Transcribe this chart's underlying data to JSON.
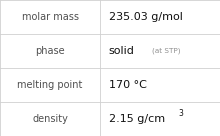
{
  "rows": [
    {
      "label": "molar mass",
      "value": "235.03 g/mol",
      "superscript": null,
      "small_suffix": null
    },
    {
      "label": "phase",
      "value": "solid",
      "superscript": null,
      "small_suffix": "(at STP)"
    },
    {
      "label": "melting point",
      "value": "170 °C",
      "superscript": null,
      "small_suffix": null
    },
    {
      "label": "density",
      "value": "2.15 g/cm",
      "superscript": "3",
      "small_suffix": null
    }
  ],
  "bg_color": "#ffffff",
  "border_color": "#d0d0d0",
  "label_color": "#505050",
  "value_color": "#111111",
  "small_color": "#909090",
  "col_split": 0.455,
  "label_fs": 7.0,
  "value_fs": 8.0,
  "small_fs": 5.2,
  "sup_fs": 5.5
}
